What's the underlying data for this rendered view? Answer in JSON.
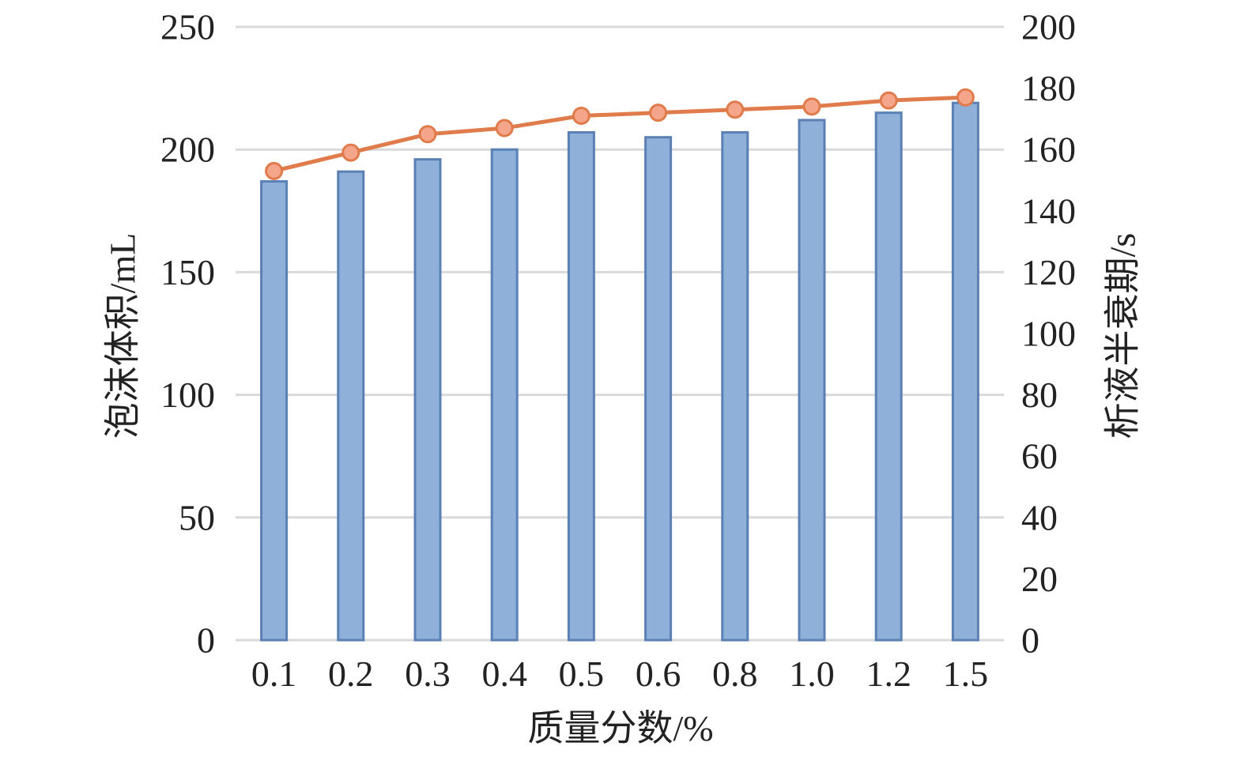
{
  "chart_data": {
    "type": "bar",
    "categories": [
      "0.1",
      "0.2",
      "0.3",
      "0.4",
      "0.5",
      "0.6",
      "0.8",
      "1.0",
      "1.2",
      "1.5"
    ],
    "series": [
      {
        "type": "bar",
        "axis": "left",
        "values": [
          187,
          191,
          196,
          200,
          207,
          205,
          207,
          212,
          215,
          219
        ],
        "color": "#8fb0d9",
        "edge_color": "#5b80b4"
      },
      {
        "type": "line",
        "axis": "right",
        "values": [
          153,
          159,
          165,
          167,
          171,
          172,
          173,
          174,
          176,
          177
        ],
        "color": "#e07b4b",
        "marker_color": "#f4a58a"
      }
    ],
    "xlabel": "质量分数/%",
    "ylabel": "泡沫体积/mL",
    "y2label": "析液半衰期/s",
    "ylim": [
      0,
      250
    ],
    "y2lim": [
      0,
      200
    ],
    "yticks": [
      "0",
      "50",
      "100",
      "150",
      "200",
      "250"
    ],
    "y2ticks": [
      "0",
      "20",
      "40",
      "60",
      "80",
      "100",
      "120",
      "140",
      "160",
      "180",
      "200"
    ],
    "grid": true,
    "grid_color": "#d9d9d9"
  }
}
